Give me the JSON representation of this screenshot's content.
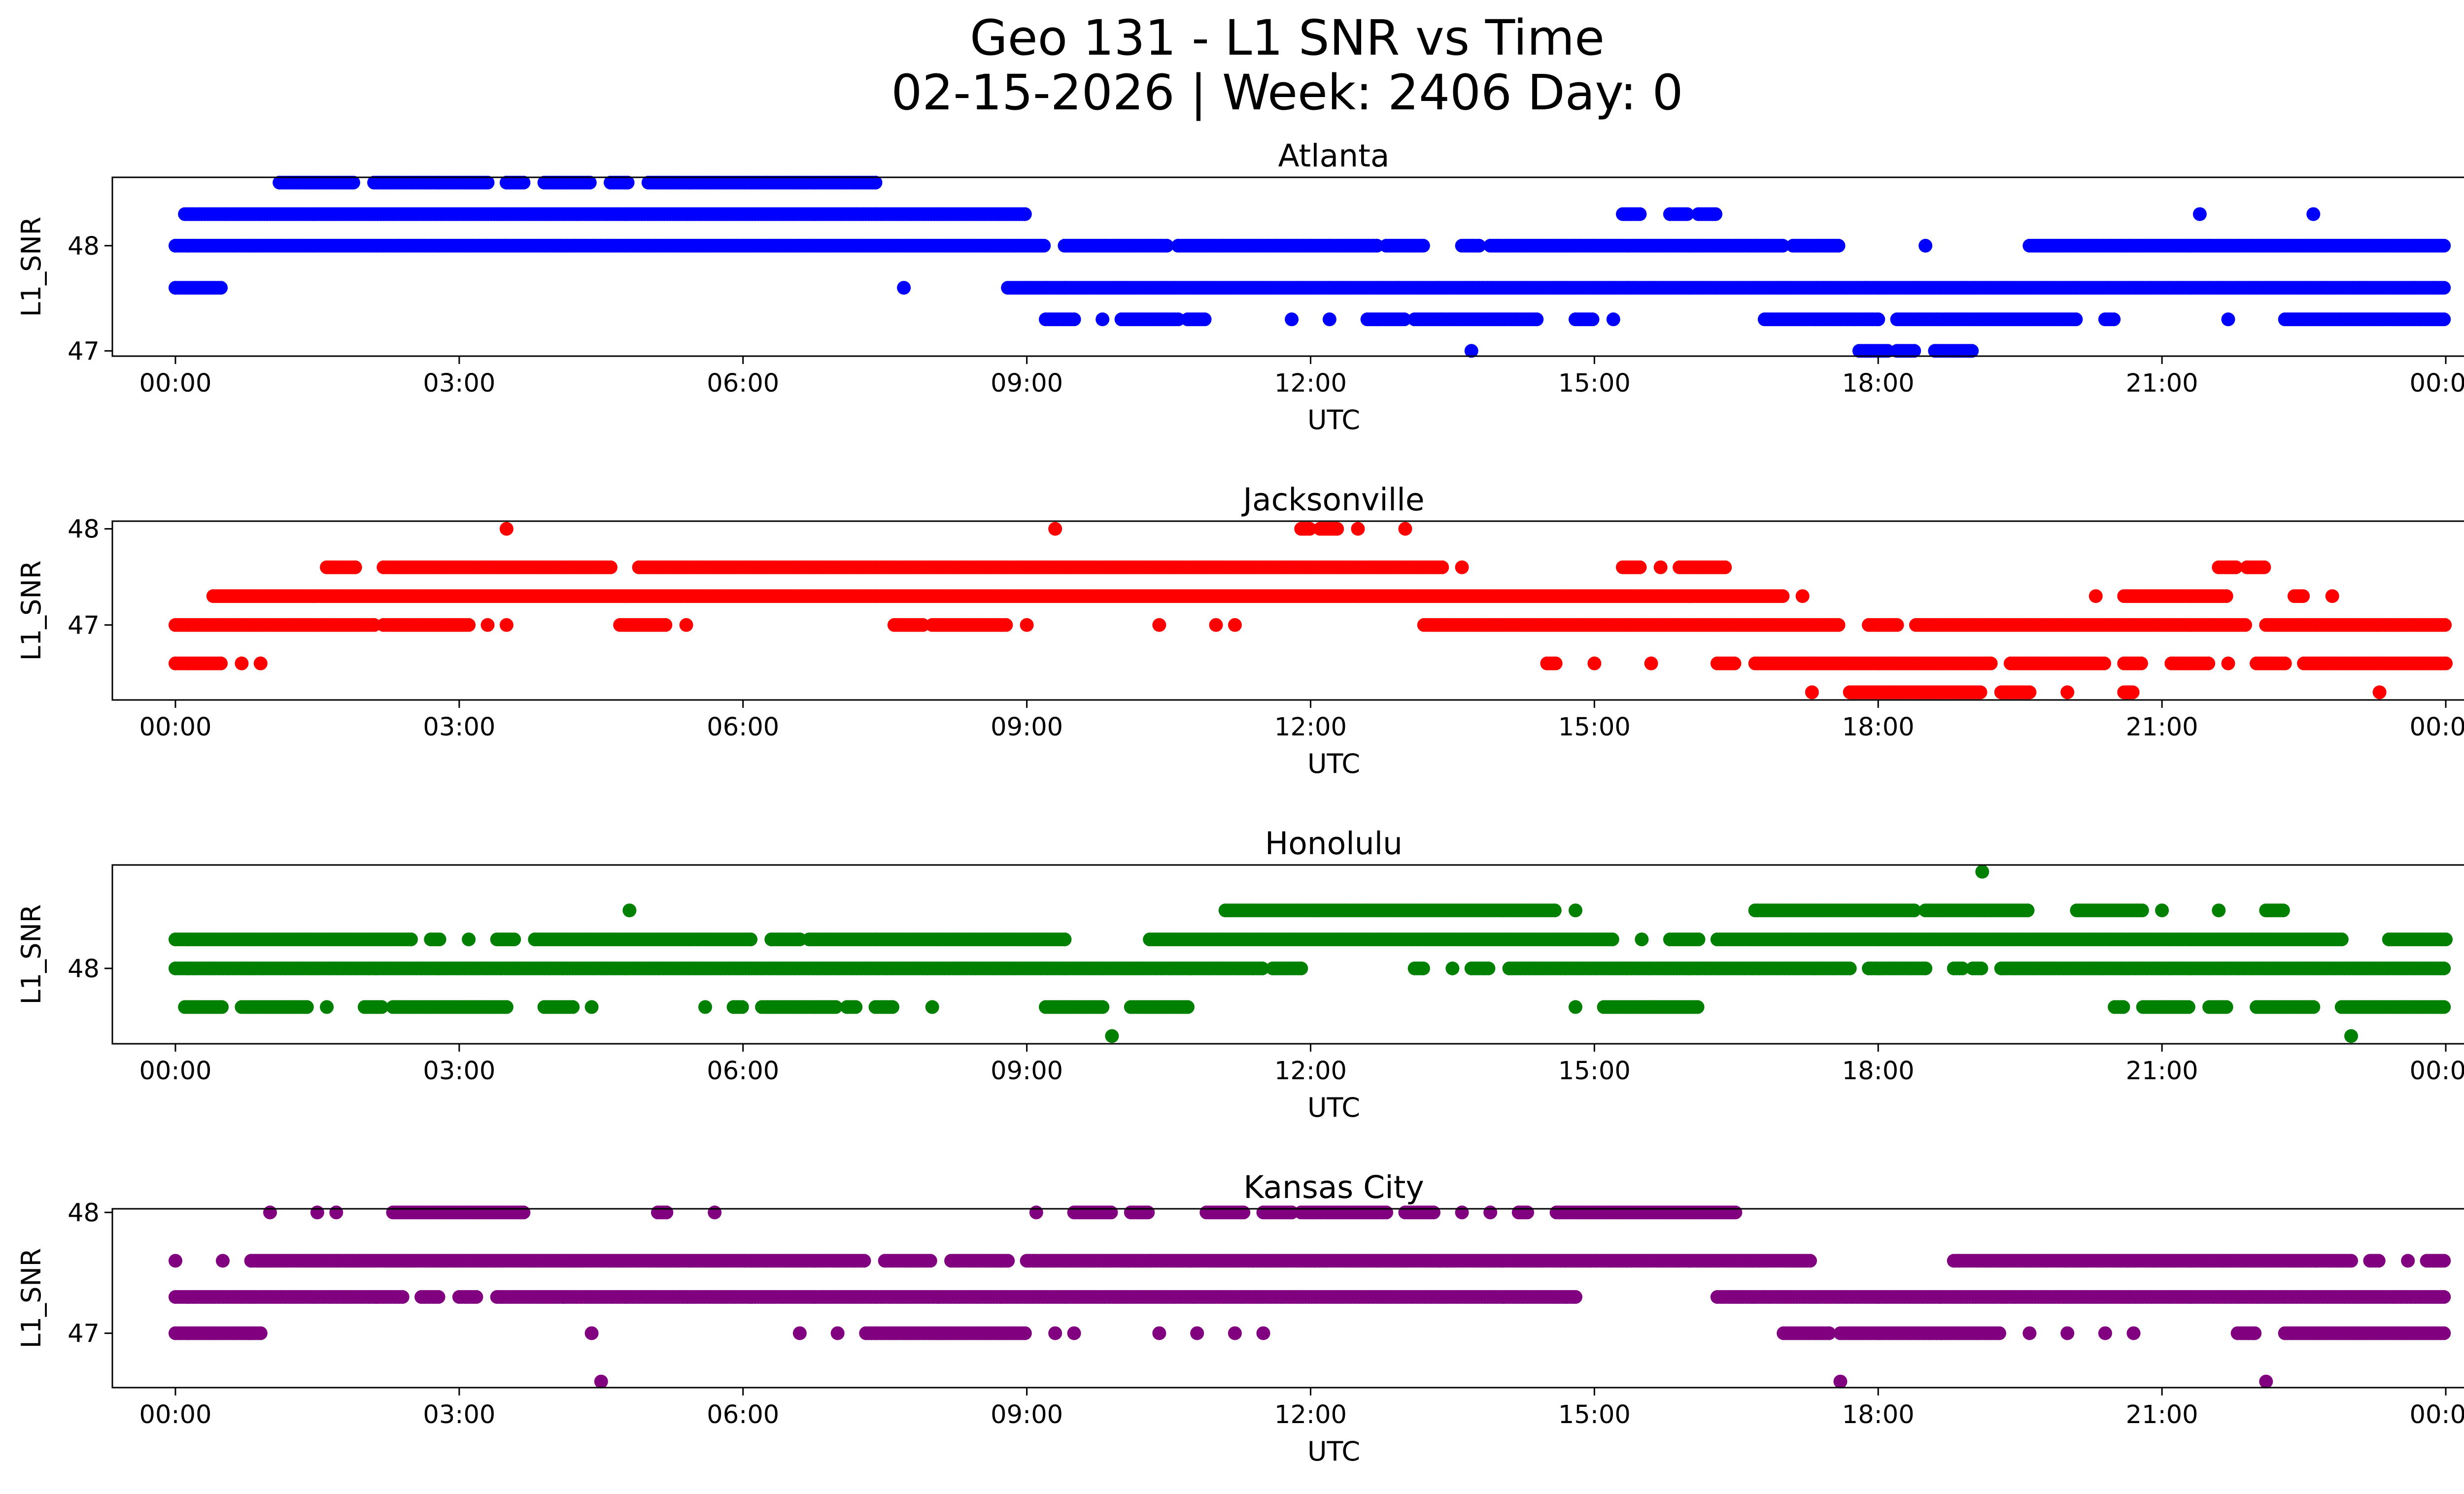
{
  "title_line1": "Geo 131 - L1 SNR vs Time",
  "title_line2": "02-15-2026 | Week: 2406 Day: 0",
  "chart_data": [
    {
      "type": "scatter",
      "title": "Atlanta",
      "xlabel": "UTC",
      "ylabel": "L1_SNR",
      "color": "#0000ff",
      "xlim": [
        "00:00",
        "24:00"
      ],
      "xticks": [
        "00:00",
        "03:00",
        "06:00",
        "09:00",
        "12:00",
        "15:00",
        "18:00",
        "21:00",
        "00:00"
      ],
      "ylim": [
        46.95,
        48.65
      ],
      "yticks": [
        47,
        48
      ],
      "ytick_labels": [
        "47",
        "48"
      ],
      "segments": [
        {
          "y": 48.6,
          "x": [
            [
              1.1,
              1.9
            ],
            [
              2.1,
              3.3
            ],
            [
              3.5,
              3.7
            ],
            [
              3.9,
              4.4
            ],
            [
              4.6,
              4.8
            ],
            [
              5.0,
              7.4
            ]
          ]
        },
        {
          "y": 48.3,
          "x": [
            [
              0.1,
              9.0
            ],
            [
              15.3,
              15.5
            ],
            [
              15.8,
              16.0
            ],
            [
              16.1,
              16.3
            ],
            [
              21.4,
              21.4
            ],
            [
              22.6,
              22.6
            ]
          ]
        },
        {
          "y": 48.0,
          "x": [
            [
              0.0,
              9.2
            ],
            [
              9.4,
              10.5
            ],
            [
              10.6,
              12.7
            ],
            [
              12.8,
              13.2
            ],
            [
              13.6,
              13.8
            ],
            [
              13.9,
              17.0
            ],
            [
              17.1,
              17.6
            ],
            [
              18.5,
              18.5
            ],
            [
              19.6,
              24.0
            ]
          ]
        },
        {
          "y": 47.6,
          "x": [
            [
              0.0,
              0.5
            ],
            [
              7.7,
              7.7
            ],
            [
              8.8,
              24.0
            ]
          ]
        },
        {
          "y": 47.3,
          "x": [
            [
              9.2,
              9.5
            ],
            [
              9.8,
              9.8
            ],
            [
              10.0,
              10.6
            ],
            [
              10.7,
              10.9
            ],
            [
              11.8,
              11.8
            ],
            [
              12.2,
              12.2
            ],
            [
              12.6,
              13.0
            ],
            [
              13.1,
              14.4
            ],
            [
              14.8,
              15.0
            ],
            [
              15.2,
              15.2
            ],
            [
              16.8,
              18.0
            ],
            [
              18.2,
              20.1
            ],
            [
              20.4,
              20.5
            ],
            [
              21.7,
              21.7
            ],
            [
              22.3,
              24.0
            ]
          ]
        },
        {
          "y": 47.0,
          "x": [
            [
              13.7,
              13.7
            ],
            [
              17.8,
              18.1
            ],
            [
              18.2,
              18.4
            ],
            [
              18.6,
              19.0
            ]
          ]
        }
      ]
    },
    {
      "type": "scatter",
      "title": "Jacksonville",
      "xlabel": "UTC",
      "ylabel": "L1_SNR",
      "color": "#ff0000",
      "xlim": [
        "00:00",
        "24:00"
      ],
      "xticks": [
        "00:00",
        "03:00",
        "06:00",
        "09:00",
        "12:00",
        "15:00",
        "18:00",
        "21:00",
        "00:00"
      ],
      "ylim": [
        46.22,
        48.08
      ],
      "yticks": [
        47,
        48
      ],
      "ytick_labels": [
        "47",
        "48"
      ],
      "segments": [
        {
          "y": 48.0,
          "x": [
            [
              3.5,
              3.5
            ],
            [
              9.3,
              9.3
            ],
            [
              11.9,
              12.0
            ],
            [
              12.1,
              12.3
            ],
            [
              12.5,
              12.5
            ],
            [
              13.0,
              13.0
            ]
          ]
        },
        {
          "y": 47.6,
          "x": [
            [
              1.6,
              1.9
            ],
            [
              2.2,
              4.6
            ],
            [
              4.9,
              13.4
            ],
            [
              13.6,
              13.6
            ],
            [
              15.3,
              15.5
            ],
            [
              15.7,
              15.7
            ],
            [
              15.9,
              16.4
            ],
            [
              21.6,
              21.8
            ],
            [
              21.9,
              22.1
            ]
          ]
        },
        {
          "y": 47.3,
          "x": [
            [
              0.4,
              17.0
            ],
            [
              17.2,
              17.2
            ],
            [
              20.3,
              20.3
            ],
            [
              20.6,
              21.7
            ],
            [
              22.4,
              22.5
            ],
            [
              22.8,
              22.8
            ]
          ]
        },
        {
          "y": 47.0,
          "x": [
            [
              0.0,
              2.1
            ],
            [
              2.2,
              3.1
            ],
            [
              3.3,
              3.3
            ],
            [
              3.5,
              3.5
            ],
            [
              4.7,
              5.2
            ],
            [
              5.4,
              5.4
            ],
            [
              7.6,
              7.9
            ],
            [
              8.0,
              8.8
            ],
            [
              9.0,
              9.0
            ],
            [
              10.4,
              10.4
            ],
            [
              11.0,
              11.0
            ],
            [
              11.2,
              11.2
            ],
            [
              13.2,
              17.6
            ],
            [
              17.9,
              18.2
            ],
            [
              18.4,
              21.9
            ],
            [
              22.1,
              24.0
            ]
          ]
        },
        {
          "y": 46.6,
          "x": [
            [
              0.0,
              0.5
            ],
            [
              0.7,
              0.7
            ],
            [
              0.9,
              0.9
            ],
            [
              14.5,
              14.6
            ],
            [
              15.0,
              15.0
            ],
            [
              15.6,
              15.6
            ],
            [
              16.3,
              16.5
            ],
            [
              16.7,
              19.2
            ],
            [
              19.4,
              20.4
            ],
            [
              20.6,
              20.8
            ],
            [
              21.1,
              21.5
            ],
            [
              21.7,
              21.7
            ],
            [
              22.0,
              22.3
            ],
            [
              22.5,
              24.0
            ]
          ]
        },
        {
          "y": 46.3,
          "x": [
            [
              17.3,
              17.3
            ],
            [
              17.7,
              19.1
            ],
            [
              19.3,
              19.6
            ],
            [
              20.0,
              20.0
            ],
            [
              20.6,
              20.7
            ],
            [
              23.3,
              23.3
            ]
          ]
        }
      ]
    },
    {
      "type": "scatter",
      "title": "Honolulu",
      "xlabel": "UTC",
      "ylabel": "L1_SNR",
      "color": "#008000",
      "xlim": [
        "00:00",
        "24:00"
      ],
      "xticks": [
        "00:00",
        "03:00",
        "06:00",
        "09:00",
        "12:00",
        "15:00",
        "18:00",
        "21:00",
        "00:00"
      ],
      "ylim": [
        47.22,
        49.07
      ],
      "yticks": [
        48
      ],
      "ytick_labels": [
        "48"
      ],
      "segments": [
        {
          "y": 49.0,
          "x": [
            [
              19.1,
              19.1
            ]
          ]
        },
        {
          "y": 48.6,
          "x": [
            [
              4.8,
              4.8
            ],
            [
              11.1,
              14.6
            ],
            [
              14.8,
              14.8
            ],
            [
              16.7,
              18.4
            ],
            [
              18.5,
              19.6
            ],
            [
              20.1,
              20.8
            ],
            [
              21.0,
              21.0
            ],
            [
              21.6,
              21.6
            ],
            [
              22.1,
              22.3
            ]
          ]
        },
        {
          "y": 48.3,
          "x": [
            [
              0.0,
              2.5
            ],
            [
              2.7,
              2.8
            ],
            [
              3.1,
              3.1
            ],
            [
              3.4,
              3.6
            ],
            [
              3.8,
              6.1
            ],
            [
              6.3,
              6.6
            ],
            [
              6.7,
              9.4
            ],
            [
              10.3,
              15.2
            ],
            [
              15.5,
              15.5
            ],
            [
              15.8,
              16.1
            ],
            [
              16.3,
              22.9
            ],
            [
              23.4,
              24.0
            ]
          ]
        },
        {
          "y": 48.0,
          "x": [
            [
              0.0,
              11.5
            ],
            [
              11.6,
              11.9
            ],
            [
              13.1,
              13.2
            ],
            [
              13.5,
              13.5
            ],
            [
              13.7,
              13.9
            ],
            [
              14.1,
              17.7
            ],
            [
              17.9,
              18.5
            ],
            [
              18.8,
              18.9
            ],
            [
              19.0,
              19.1
            ],
            [
              19.3,
              24.0
            ]
          ]
        },
        {
          "y": 47.6,
          "x": [
            [
              0.1,
              0.5
            ],
            [
              0.7,
              1.4
            ],
            [
              1.6,
              1.6
            ],
            [
              2.0,
              2.2
            ],
            [
              2.3,
              3.5
            ],
            [
              3.9,
              4.2
            ],
            [
              4.4,
              4.4
            ],
            [
              5.6,
              5.6
            ],
            [
              5.9,
              6.0
            ],
            [
              6.2,
              7.0
            ],
            [
              7.1,
              7.2
            ],
            [
              7.4,
              7.6
            ],
            [
              8.0,
              8.0
            ],
            [
              9.2,
              9.8
            ],
            [
              10.1,
              10.7
            ],
            [
              14.8,
              14.8
            ],
            [
              15.1,
              16.1
            ],
            [
              20.5,
              20.6
            ],
            [
              20.8,
              21.3
            ],
            [
              21.5,
              21.7
            ],
            [
              22.0,
              22.6
            ],
            [
              22.9,
              24.0
            ]
          ]
        },
        {
          "y": 47.3,
          "x": [
            [
              9.9,
              9.9
            ],
            [
              23.0,
              23.0
            ]
          ]
        }
      ]
    },
    {
      "type": "scatter",
      "title": "Kansas City",
      "xlabel": "UTC",
      "ylabel": "L1_SNR",
      "color": "#800080",
      "xlim": [
        "00:00",
        "24:00"
      ],
      "xticks": [
        "00:00",
        "03:00",
        "06:00",
        "09:00",
        "12:00",
        "15:00",
        "18:00",
        "21:00",
        "00:00"
      ],
      "ylim": [
        46.55,
        48.03
      ],
      "yticks": [
        47,
        48
      ],
      "ytick_labels": [
        "47",
        "48"
      ],
      "segments": [
        {
          "y": 48.0,
          "x": [
            [
              1.0,
              1.0
            ],
            [
              1.5,
              1.5
            ],
            [
              1.7,
              1.7
            ],
            [
              2.3,
              3.7
            ],
            [
              5.1,
              5.2
            ],
            [
              5.7,
              5.7
            ],
            [
              9.1,
              9.1
            ],
            [
              9.5,
              9.9
            ],
            [
              10.1,
              10.3
            ],
            [
              10.9,
              11.3
            ],
            [
              11.5,
              11.8
            ],
            [
              11.9,
              12.8
            ],
            [
              13.0,
              13.3
            ],
            [
              13.6,
              13.6
            ],
            [
              13.9,
              13.9
            ],
            [
              14.2,
              14.3
            ],
            [
              14.6,
              16.5
            ]
          ]
        },
        {
          "y": 47.6,
          "x": [
            [
              0.0,
              0.0
            ],
            [
              0.5,
              0.5
            ],
            [
              0.8,
              7.3
            ],
            [
              7.5,
              8.0
            ],
            [
              8.2,
              8.8
            ],
            [
              9.0,
              17.3
            ],
            [
              18.8,
              23.0
            ],
            [
              23.2,
              23.3
            ],
            [
              23.6,
              23.6
            ],
            [
              23.8,
              24.0
            ]
          ]
        },
        {
          "y": 47.3,
          "x": [
            [
              0.0,
              2.4
            ],
            [
              2.6,
              2.8
            ],
            [
              3.0,
              3.2
            ],
            [
              3.4,
              14.8
            ],
            [
              16.3,
              24.0
            ]
          ]
        },
        {
          "y": 47.0,
          "x": [
            [
              0.0,
              0.9
            ],
            [
              4.4,
              4.4
            ],
            [
              6.6,
              6.6
            ],
            [
              7.0,
              7.0
            ],
            [
              7.3,
              9.0
            ],
            [
              9.3,
              9.3
            ],
            [
              9.5,
              9.5
            ],
            [
              10.4,
              10.4
            ],
            [
              10.8,
              10.8
            ],
            [
              11.2,
              11.2
            ],
            [
              11.5,
              11.5
            ],
            [
              17.0,
              17.5
            ],
            [
              17.6,
              19.3
            ],
            [
              19.6,
              19.6
            ],
            [
              20.0,
              20.0
            ],
            [
              20.4,
              20.4
            ],
            [
              20.7,
              20.7
            ],
            [
              21.8,
              22.0
            ],
            [
              22.3,
              24.0
            ]
          ]
        },
        {
          "y": 46.6,
          "x": [
            [
              4.5,
              4.5
            ],
            [
              17.6,
              17.6
            ],
            [
              22.1,
              22.1
            ]
          ]
        }
      ]
    }
  ]
}
